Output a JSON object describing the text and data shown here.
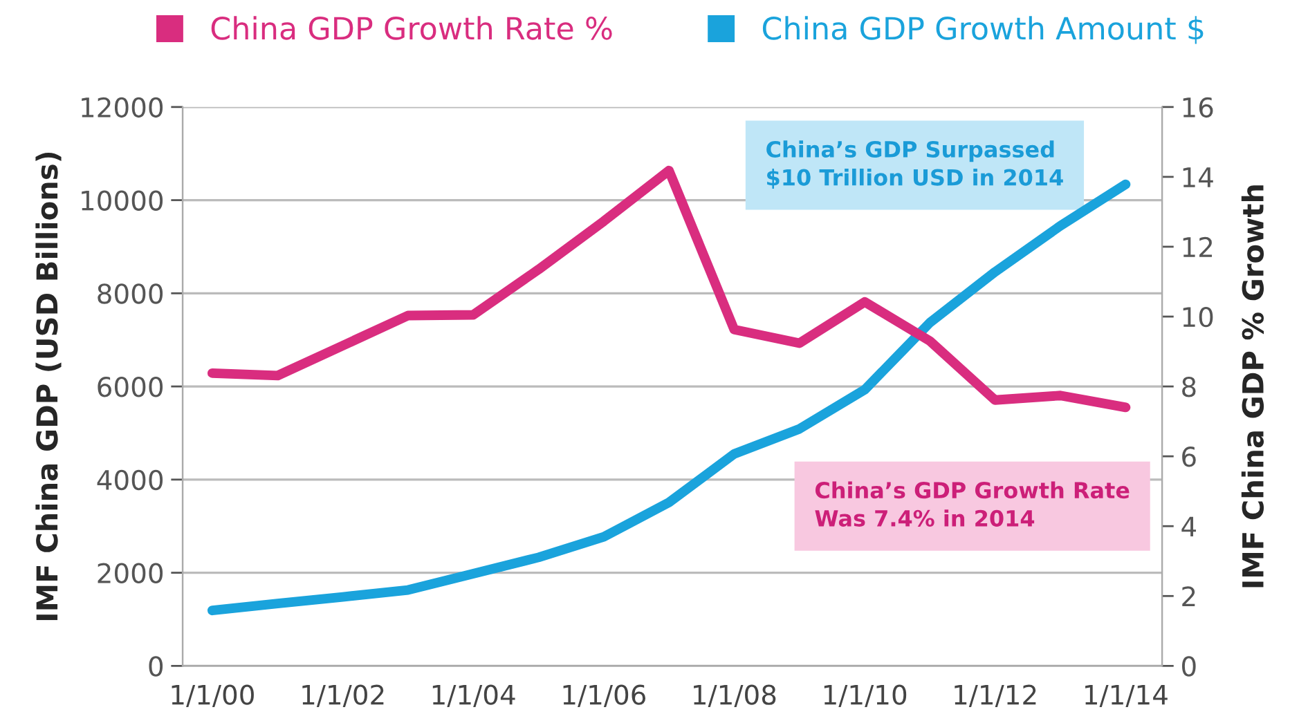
{
  "chart_data": {
    "type": "line",
    "x": [
      "2000",
      "2001",
      "2002",
      "2003",
      "2004",
      "2005",
      "2006",
      "2007",
      "2008",
      "2009",
      "2010",
      "2011",
      "2012",
      "2013",
      "2014"
    ],
    "series": [
      {
        "name": "China GDP Growth Rate %",
        "color": "#d92d7f",
        "axis": "y2",
        "values": [
          8.38,
          8.31,
          9.17,
          10.03,
          10.05,
          11.35,
          12.73,
          14.18,
          9.63,
          9.24,
          10.42,
          9.3,
          7.61,
          7.74,
          7.4
        ]
      },
      {
        "name": "China GDP Growth Amount $",
        "color": "#1aa3dc",
        "values": [
          1190,
          1340,
          1480,
          1630,
          1980,
          2330,
          2770,
          3510,
          4550,
          5090,
          5930,
          7370,
          8460,
          9450,
          10340
        ]
      }
    ],
    "ylabel": "IMF China GDP (USD Billions)",
    "y2label": "IMF China GDP % Growth",
    "xlim": [
      "1999-07-19",
      "2014-07-24"
    ],
    "xticks": [
      {
        "value": "2000-01-01",
        "label": "1/1/00"
      },
      {
        "value": "2002-01-01",
        "label": "1/1/02"
      },
      {
        "value": "2004-01-01",
        "label": "1/1/04"
      },
      {
        "value": "2006-01-01",
        "label": "1/1/06"
      },
      {
        "value": "2008-01-01",
        "label": "1/1/08"
      },
      {
        "value": "2010-01-01",
        "label": "1/1/10"
      },
      {
        "value": "2012-01-01",
        "label": "1/1/12"
      },
      {
        "value": "2014-01-01",
        "label": "1/1/14"
      }
    ],
    "ylim": [
      0,
      12000
    ],
    "yticks": [
      0,
      2000,
      4000,
      6000,
      8000,
      10000,
      12000
    ],
    "y2lim": [
      0,
      16
    ],
    "y2ticks": [
      0,
      2,
      4,
      6,
      8,
      10,
      12,
      14,
      16
    ],
    "annotations": [
      "China’s GDP Surpassed\n$10 Trillion USD in 2014",
      "China’s GDP Growth Rate\nWas 7.4% in 2014"
    ],
    "grid": "y",
    "legend": "top",
    "marker": "none",
    "line_style": "solid"
  }
}
